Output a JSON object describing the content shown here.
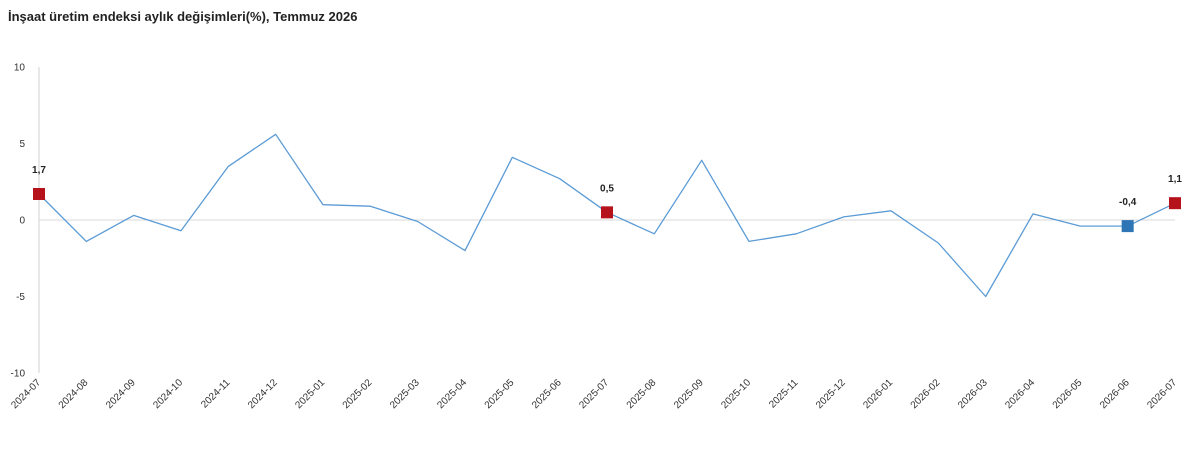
{
  "chart_data": {
    "type": "line",
    "title": "İnşaat üretim endeksi aylık değişimleri(%), Temmuz 2026",
    "xlabel": "",
    "ylabel": "",
    "ylim": [
      -10,
      10
    ],
    "yticks": [
      10,
      5,
      0,
      -5,
      -10
    ],
    "grid": false,
    "legend": "none",
    "categories": [
      "2024-07",
      "2024-08",
      "2024-09",
      "2024-10",
      "2024-11",
      "2024-12",
      "2025-01",
      "2025-02",
      "2025-03",
      "2025-04",
      "2025-05",
      "2025-06",
      "2025-07",
      "2025-08",
      "2025-09",
      "2025-10",
      "2025-11",
      "2025-12",
      "2026-01",
      "2026-02",
      "2026-03",
      "2026-04",
      "2026-05",
      "2026-06",
      "2026-07"
    ],
    "series": [
      {
        "values": [
          1.7,
          -1.4,
          0.3,
          -0.7,
          3.5,
          5.6,
          1.0,
          0.9,
          -0.1,
          -2.0,
          4.1,
          2.7,
          0.5,
          -0.9,
          3.9,
          -1.4,
          -0.9,
          0.2,
          0.6,
          -1.5,
          -5.0,
          0.4,
          -0.4,
          -0.4,
          1.1
        ],
        "color": "#5b9bd5"
      }
    ],
    "highlighted_points": [
      {
        "index": 0,
        "label": "1,7",
        "color": "#b5121b"
      },
      {
        "index": 12,
        "label": "0,5",
        "color": "#b5121b"
      },
      {
        "index": 23,
        "label": "-0,4",
        "color": "#2e75b6"
      },
      {
        "index": 24,
        "label": "1,1",
        "color": "#b5121b"
      }
    ]
  }
}
